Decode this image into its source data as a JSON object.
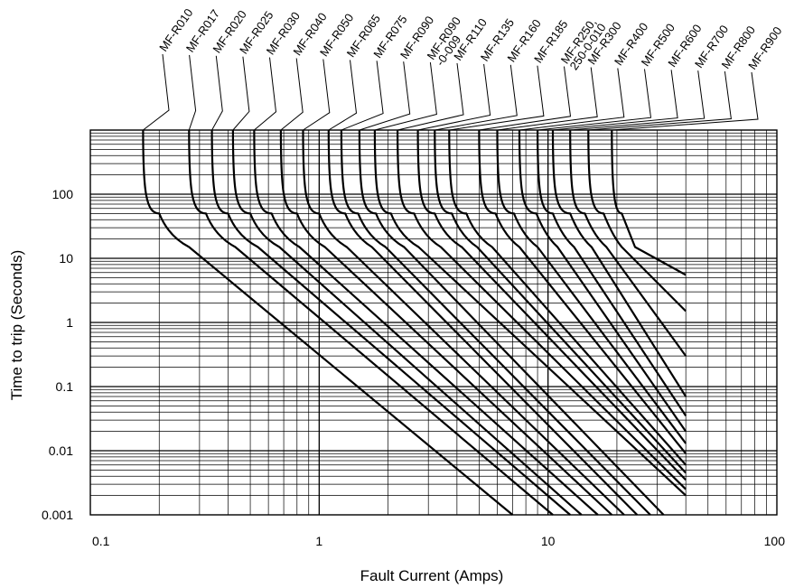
{
  "chart_data": {
    "type": "line",
    "title": "",
    "xlabel": "Fault Current (Amps)",
    "ylabel": "Time to trip (Seconds)",
    "x_scale": "log",
    "y_scale": "log",
    "xlim": [
      0.1,
      100
    ],
    "ylim": [
      0.001,
      1000
    ],
    "x_tick_labels": [
      "0.1",
      "1",
      "10",
      "100"
    ],
    "x_tick_values": [
      0.1,
      1,
      10,
      100
    ],
    "y_tick_labels": [
      "0.001",
      "0.01",
      "0.1",
      "1",
      "10",
      "100"
    ],
    "y_tick_values": [
      0.001,
      0.01,
      0.1,
      1,
      10,
      100
    ],
    "grid": true,
    "line_color": "#000000",
    "series": [
      {
        "name": "MF-R010",
        "label_lines": [
          "MF-R010"
        ],
        "points": [
          [
            0.17,
            1000
          ],
          [
            0.2,
            50
          ],
          [
            0.27,
            15
          ],
          [
            7.0,
            0.001
          ]
        ]
      },
      {
        "name": "MF-R017",
        "label_lines": [
          "MF-R017"
        ],
        "points": [
          [
            0.27,
            1000
          ],
          [
            0.32,
            50
          ],
          [
            0.43,
            15
          ],
          [
            10.5,
            0.001
          ]
        ]
      },
      {
        "name": "MF-R020",
        "label_lines": [
          "MF-R020"
        ],
        "points": [
          [
            0.34,
            1000
          ],
          [
            0.4,
            50
          ],
          [
            0.54,
            15
          ],
          [
            12.5,
            0.001
          ]
        ]
      },
      {
        "name": "MF-R025",
        "label_lines": [
          "MF-R025"
        ],
        "points": [
          [
            0.42,
            1000
          ],
          [
            0.5,
            50
          ],
          [
            0.67,
            15
          ],
          [
            14.0,
            0.001
          ]
        ]
      },
      {
        "name": "MF-R030",
        "label_lines": [
          "MF-R030"
        ],
        "points": [
          [
            0.52,
            1000
          ],
          [
            0.62,
            50
          ],
          [
            0.82,
            15
          ],
          [
            16.5,
            0.001
          ]
        ]
      },
      {
        "name": "MF-R040",
        "label_lines": [
          "MF-R040"
        ],
        "points": [
          [
            0.68,
            1000
          ],
          [
            0.8,
            50
          ],
          [
            1.06,
            15
          ],
          [
            19.0,
            0.001
          ]
        ]
      },
      {
        "name": "MF-R050",
        "label_lines": [
          "MF-R050"
        ],
        "points": [
          [
            0.85,
            1000
          ],
          [
            1.0,
            50
          ],
          [
            1.32,
            15
          ],
          [
            21.5,
            0.001
          ]
        ]
      },
      {
        "name": "MF-R065",
        "label_lines": [
          "MF-R065"
        ],
        "points": [
          [
            1.1,
            1000
          ],
          [
            1.3,
            50
          ],
          [
            1.7,
            15
          ],
          [
            24.5,
            0.001
          ]
        ]
      },
      {
        "name": "MF-R075",
        "label_lines": [
          "MF-R075"
        ],
        "points": [
          [
            1.25,
            1000
          ],
          [
            1.48,
            50
          ],
          [
            1.95,
            15
          ],
          [
            28.0,
            0.001
          ]
        ]
      },
      {
        "name": "MF-R090",
        "label_lines": [
          "MF-R090"
        ],
        "points": [
          [
            1.5,
            1000
          ],
          [
            1.77,
            50
          ],
          [
            2.35,
            15
          ],
          [
            32.0,
            0.001
          ]
        ]
      },
      {
        "name": "MF-R090-0-009",
        "label_lines": [
          "MF-R090",
          "-0-009"
        ],
        "points": [
          [
            1.75,
            1000
          ],
          [
            2.06,
            50
          ],
          [
            2.72,
            15
          ],
          [
            40.0,
            0.002
          ]
        ]
      },
      {
        "name": "MF-R110",
        "label_lines": [
          "MF-R110"
        ],
        "points": [
          [
            2.2,
            1000
          ],
          [
            2.6,
            50
          ],
          [
            3.4,
            15
          ],
          [
            40.0,
            0.0025
          ]
        ]
      },
      {
        "name": "MF-R135",
        "label_lines": [
          "MF-R135"
        ],
        "points": [
          [
            2.7,
            1000
          ],
          [
            3.2,
            50
          ],
          [
            4.2,
            15
          ],
          [
            40.0,
            0.0035
          ]
        ]
      },
      {
        "name": "MF-R160",
        "label_lines": [
          "MF-R160"
        ],
        "points": [
          [
            3.2,
            1000
          ],
          [
            3.8,
            50
          ],
          [
            4.9,
            15
          ],
          [
            40.0,
            0.0045
          ]
        ]
      },
      {
        "name": "MF-R185",
        "label_lines": [
          "MF-R185"
        ],
        "points": [
          [
            3.7,
            1000
          ],
          [
            4.4,
            50
          ],
          [
            5.7,
            15
          ],
          [
            40.0,
            0.006
          ]
        ]
      },
      {
        "name": "MF-R250, 250-0-010",
        "label_lines": [
          "MF-R250,",
          "250-0-010"
        ],
        "points": [
          [
            5.0,
            1000
          ],
          [
            5.9,
            50
          ],
          [
            7.5,
            15
          ],
          [
            40.0,
            0.009
          ]
        ]
      },
      {
        "name": "MF-R300",
        "label_lines": [
          "MF-R300"
        ],
        "points": [
          [
            6.0,
            1000
          ],
          [
            7.1,
            50
          ],
          [
            9.0,
            15
          ],
          [
            40.0,
            0.013
          ]
        ]
      },
      {
        "name": "MF-R400",
        "label_lines": [
          "MF-R400"
        ],
        "points": [
          [
            7.5,
            1000
          ],
          [
            8.9,
            50
          ],
          [
            11.0,
            15
          ],
          [
            40.0,
            0.02
          ]
        ]
      },
      {
        "name": "MF-R500",
        "label_lines": [
          "MF-R500"
        ],
        "points": [
          [
            9.0,
            1000
          ],
          [
            10.5,
            50
          ],
          [
            13.0,
            15
          ],
          [
            40.0,
            0.035
          ]
        ]
      },
      {
        "name": "MF-R600",
        "label_lines": [
          "MF-R600"
        ],
        "points": [
          [
            10.5,
            1000
          ],
          [
            12.5,
            50
          ],
          [
            15.5,
            15
          ],
          [
            40.0,
            0.07
          ]
        ]
      },
      {
        "name": "MF-R700",
        "label_lines": [
          "MF-R700"
        ],
        "points": [
          [
            12.5,
            1000
          ],
          [
            14.5,
            50
          ],
          [
            18.0,
            15
          ],
          [
            40.0,
            0.3
          ]
        ]
      },
      {
        "name": "MF-R800",
        "label_lines": [
          "MF-R800"
        ],
        "points": [
          [
            15.0,
            1000
          ],
          [
            17.5,
            50
          ],
          [
            21.0,
            15
          ],
          [
            40.0,
            1.5
          ]
        ]
      },
      {
        "name": "MF-R900",
        "label_lines": [
          "MF-R900"
        ],
        "points": [
          [
            19.0,
            1000
          ],
          [
            21.0,
            50
          ],
          [
            24.0,
            15
          ],
          [
            40.0,
            5.5
          ]
        ]
      }
    ]
  }
}
